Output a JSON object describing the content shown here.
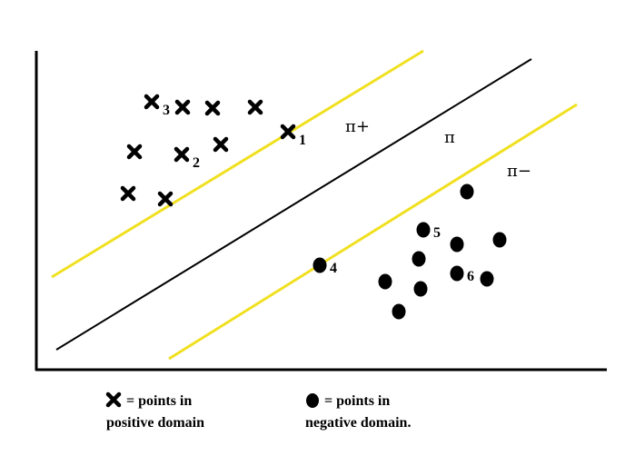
{
  "hyperplanes": {
    "pi_plus": "π+",
    "pi": "π",
    "pi_minus": "π−"
  },
  "colors": {
    "margin_lines": "#f0e020",
    "decision_line": "#000000",
    "points": "#000000"
  },
  "positive_points": [
    {
      "label": "3"
    },
    {
      "label": ""
    },
    {
      "label": ""
    },
    {
      "label": ""
    },
    {
      "label": "1"
    },
    {
      "label": ""
    },
    {
      "label": "2"
    },
    {
      "label": ""
    },
    {
      "label": ""
    },
    {
      "label": ""
    }
  ],
  "negative_points": [
    {
      "label": ""
    },
    {
      "label": "5"
    },
    {
      "label": ""
    },
    {
      "label": ""
    },
    {
      "label": "4"
    },
    {
      "label": ""
    },
    {
      "label": ""
    },
    {
      "label": "6"
    },
    {
      "label": ""
    },
    {
      "label": ""
    },
    {
      "label": ""
    }
  ],
  "legend": {
    "positive_line1": "= points in",
    "positive_line2": "positive domain",
    "negative_line1": "= points in",
    "negative_line2": "negative domain."
  }
}
